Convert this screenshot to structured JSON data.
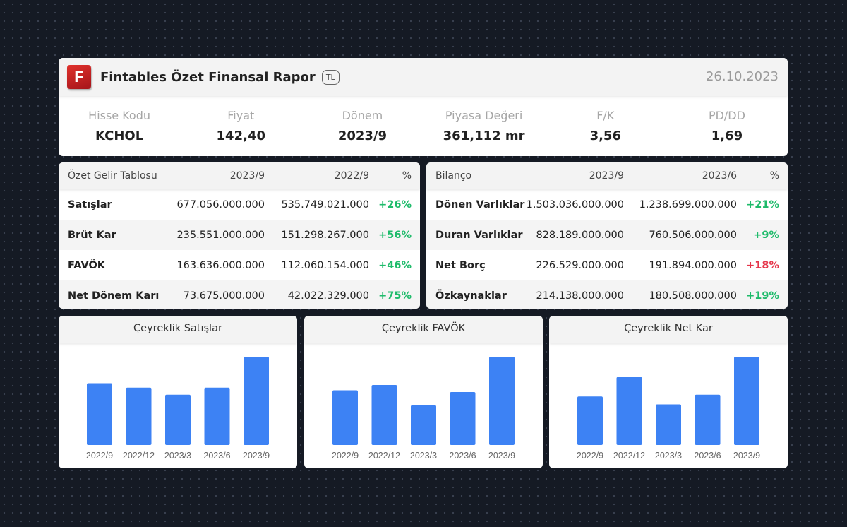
{
  "header": {
    "logo_letter": "F",
    "title": "Fintables Özet Finansal Rapor",
    "currency": "TL",
    "date": "26.10.2023",
    "brand_color": "#d0282c"
  },
  "stats": [
    {
      "label": "Hisse Kodu",
      "value": "KCHOL"
    },
    {
      "label": "Fiyat",
      "value": "142,40"
    },
    {
      "label": "Dönem",
      "value": "2023/9"
    },
    {
      "label": "Piyasa Değeri",
      "value": "361,112 mr"
    },
    {
      "label": "F/K",
      "value": "3,56"
    },
    {
      "label": "PD/DD",
      "value": "1,69"
    }
  ],
  "income": {
    "headers": [
      "Özet Gelir Tablosu",
      "2023/9",
      "2022/9",
      "%"
    ],
    "rows": [
      {
        "label": "Satışlar",
        "v1": "677.056.000.000",
        "v2": "535.749.021.000",
        "pct": "+26%",
        "trend": "up"
      },
      {
        "label": "Brüt Kar",
        "v1": "235.551.000.000",
        "v2": "151.298.267.000",
        "pct": "+56%",
        "trend": "up"
      },
      {
        "label": "FAVÖK",
        "v1": "163.636.000.000",
        "v2": "112.060.154.000",
        "pct": "+46%",
        "trend": "up"
      },
      {
        "label": "Net Dönem Karı",
        "v1": "73.675.000.000",
        "v2": "42.022.329.000",
        "pct": "+75%",
        "trend": "up"
      }
    ]
  },
  "balance": {
    "headers": [
      "Bilanço",
      "2023/9",
      "2023/6",
      "%"
    ],
    "rows": [
      {
        "label": "Dönen Varlıklar",
        "v1": "1.503.036.000.000",
        "v2": "1.238.699.000.000",
        "pct": "+21%",
        "trend": "up"
      },
      {
        "label": "Duran Varlıklar",
        "v1": "828.189.000.000",
        "v2": "760.506.000.000",
        "pct": "+9%",
        "trend": "up"
      },
      {
        "label": "Net Borç",
        "v1": "226.529.000.000",
        "v2": "191.894.000.000",
        "pct": "+18%",
        "trend": "down"
      },
      {
        "label": "Özkaynaklar",
        "v1": "214.138.000.000",
        "v2": "180.508.000.000",
        "pct": "+19%",
        "trend": "up"
      }
    ]
  },
  "colors": {
    "positive": "#1fbb6b",
    "negative": "#e5354a",
    "bar": "#3d82f4"
  },
  "chart_data": [
    {
      "type": "bar",
      "title": "Çeyreklik Satışlar",
      "categories": [
        "2022/9",
        "2022/12",
        "2023/3",
        "2023/6",
        "2023/9"
      ],
      "values": [
        0.7,
        0.65,
        0.57,
        0.65,
        1.0
      ]
    },
    {
      "type": "bar",
      "title": "Çeyreklik FAVÖK",
      "categories": [
        "2022/9",
        "2022/12",
        "2023/3",
        "2023/6",
        "2023/9"
      ],
      "values": [
        0.62,
        0.68,
        0.45,
        0.6,
        1.0
      ]
    },
    {
      "type": "bar",
      "title": "Çeyreklik Net Kar",
      "categories": [
        "2022/9",
        "2022/12",
        "2023/3",
        "2023/6",
        "2023/9"
      ],
      "values": [
        0.55,
        0.77,
        0.46,
        0.57,
        1.0
      ]
    }
  ]
}
